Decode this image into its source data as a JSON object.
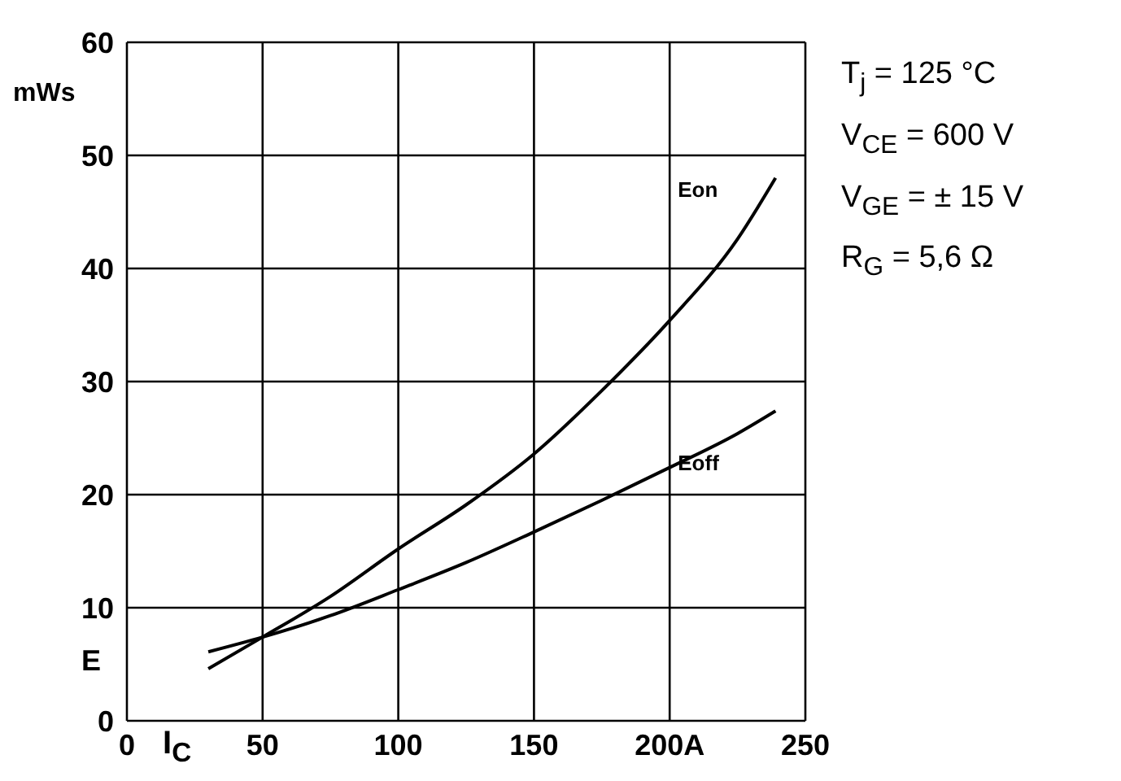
{
  "chart_data": {
    "type": "line",
    "x": [
      30,
      50,
      75,
      100,
      125,
      150,
      175,
      200,
      225,
      239
    ],
    "series": [
      {
        "name": "Eon",
        "color": "#000000",
        "values": [
          4.6,
          7.4,
          11.0,
          15.2,
          19.1,
          23.6,
          29.2,
          35.4,
          42.6,
          48.0
        ]
      },
      {
        "name": "Eoff",
        "color": "#000000",
        "values": [
          6.1,
          7.4,
          9.3,
          11.6,
          14.0,
          16.7,
          19.5,
          22.4,
          25.4,
          27.4
        ]
      }
    ],
    "xlabel": "I$_{C}$",
    "ylabel": "E",
    "xlim": [
      0,
      250
    ],
    "xticks": [
      0,
      50,
      100,
      150,
      {
        "value": 200,
        "label": "200A"
      },
      250
    ],
    "ylim": [
      0,
      60
    ],
    "yticks": [
      0,
      10,
      20,
      30,
      40,
      50,
      60
    ],
    "annotations": [
      "mWs",
      "T$_{j}$ = 125 °C",
      "V$_{CE}$ = 600 V",
      "V$_{GE}$ = ± 15 V",
      "R$_{G}$ = 5,6 Ω"
    ],
    "grid": true,
    "marker": "none",
    "line_style": "solid"
  }
}
